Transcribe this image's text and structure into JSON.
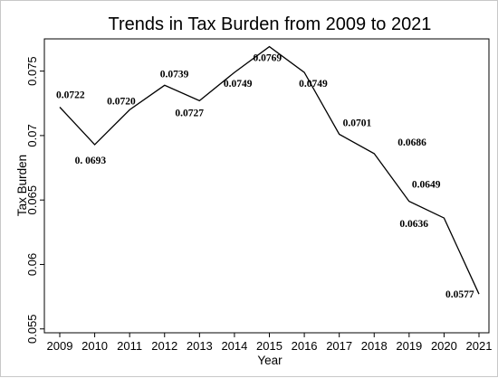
{
  "chart_data": {
    "type": "line",
    "title": "Trends in Tax Burden from 2009 to 2021",
    "xlabel": "Year",
    "ylabel": "Tax Burden",
    "x": [
      "2009",
      "2010",
      "2011",
      "2012",
      "2013",
      "2014",
      "2015",
      "2016",
      "2017",
      "2018",
      "2019",
      "2020",
      "2021"
    ],
    "series": [
      {
        "values": [
          0.0722,
          0.0693,
          0.072,
          0.0739,
          0.0727,
          0.0749,
          0.0769,
          0.0749,
          0.0701,
          0.0686,
          0.0649,
          0.0636,
          0.0577
        ]
      }
    ],
    "data_labels": [
      "0.0722",
      "0. 0693",
      "0.0720",
      "0.0739",
      "0.0727",
      "0.0749",
      "0.0769",
      "0.0749",
      "0.0701",
      "0.0686",
      "0.0649",
      "0.0636",
      "0.0577"
    ],
    "yticks": [
      "0.055",
      "0.06",
      "0.065",
      "0.07",
      "0.075"
    ],
    "ylim": [
      0.0547,
      0.0775
    ],
    "grid": false,
    "line_color": "#000000"
  }
}
